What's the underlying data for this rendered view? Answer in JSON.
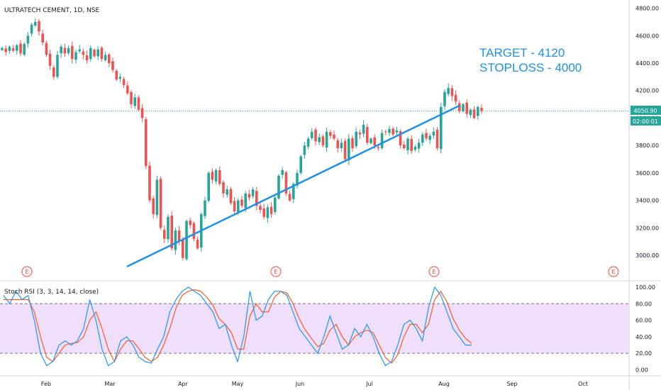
{
  "symbol_title": "ULTRATECH CEMENT, 1D, NSE",
  "annotations": {
    "target": "TARGET  - 4120",
    "stoploss": "STOPLOSS  - 4000"
  },
  "price_badge": {
    "value": "4050.90",
    "countdown": "02:00:01"
  },
  "earnings_marker": "E",
  "indicator_title": "Stoch RSI (3, 3, 14, 14, close)",
  "colors": {
    "up": "#26a69a",
    "down": "#ef5350",
    "trendline": "#1e90e6",
    "rsi_k": "#2196f3",
    "rsi_d": "#ff5722",
    "rsi_band": "#e9d3fb",
    "earnings": "#f44336"
  },
  "chart_data": [
    {
      "type": "candlestick",
      "title": "ULTRATECH CEMENT, 1D, NSE",
      "y_ticks": [
        3000,
        3200,
        3400,
        3600,
        3800,
        4000,
        4200,
        4400,
        4600,
        4800
      ],
      "y_tick_labels": [
        "3000.00",
        "3200.00",
        "3400.00",
        "3600.00",
        "3800.00",
        "4000.00",
        "4200.00",
        "4400.00",
        "4600.00",
        "4800.00"
      ],
      "ylim": [
        2880,
        4850
      ],
      "x_labels": [
        "Feb",
        "Mar",
        "Apr",
        "May",
        "Jun",
        "Jul",
        "Aug",
        "Sep",
        "Oct"
      ],
      "last_price": 4050.9,
      "grid": false,
      "series": [
        {
          "closes": [
            4510,
            4480,
            4520,
            4490,
            4530,
            4470,
            4540,
            4600,
            4680,
            4700,
            4630,
            4550,
            4460,
            4380,
            4300,
            4460,
            4520,
            4470,
            4510,
            4430,
            4480,
            4500,
            4460,
            4420,
            4510,
            4450,
            4500,
            4430,
            4460,
            4400,
            4350,
            4280,
            4300,
            4240,
            4180,
            4100,
            4150,
            4060,
            4000,
            3650,
            3400,
            3300,
            3550,
            3200,
            3120,
            3280,
            3050,
            3180,
            3100,
            2980,
            3250,
            3220,
            3120,
            3050,
            3300,
            3400,
            3600,
            3550,
            3620,
            3520,
            3450,
            3480,
            3380,
            3320,
            3400,
            3360,
            3450,
            3420,
            3480,
            3360,
            3330,
            3280,
            3350,
            3300,
            3420,
            3580,
            3620,
            3450,
            3400,
            3520,
            3600,
            3720,
            3800,
            3850,
            3900,
            3830,
            3860,
            3800,
            3900,
            3870,
            3850,
            3780,
            3820,
            3700,
            3850,
            3780,
            3900,
            3880,
            3950,
            3820,
            3850,
            3800,
            3780,
            3890,
            3900,
            3920,
            3880,
            3910,
            3800,
            3780,
            3850,
            3760,
            3790,
            3820,
            3880,
            3850,
            3870,
            3900,
            3780,
            4080,
            4190,
            4220,
            4160,
            4120,
            4050,
            4100,
            4030,
            4060,
            4000,
            4080,
            4050
          ]
        }
      ],
      "trendline": {
        "from": {
          "bar": 34,
          "price": 2920
        },
        "to": {
          "bar": 124,
          "price": 4090
        }
      },
      "earnings_marks": [
        "Feb",
        "May",
        "Aug",
        "Oct"
      ]
    },
    {
      "type": "line",
      "title": "Stoch RSI (3, 3, 14, 14, close)",
      "y_ticks": [
        0,
        20,
        40,
        60,
        80,
        100
      ],
      "y_tick_labels": [
        "0.00",
        "20.00",
        "40.00",
        "60.00",
        "80.00",
        "100.00"
      ],
      "ylim": [
        -5,
        105
      ],
      "band": [
        20,
        80
      ],
      "series": [
        {
          "name": "K",
          "values": [
            90,
            80,
            95,
            85,
            90,
            60,
            20,
            5,
            10,
            30,
            35,
            30,
            35,
            50,
            85,
            60,
            25,
            5,
            10,
            35,
            40,
            30,
            15,
            10,
            8,
            25,
            40,
            70,
            85,
            95,
            100,
            95,
            90,
            80,
            70,
            50,
            55,
            30,
            10,
            40,
            95,
            60,
            65,
            85,
            95,
            95,
            90,
            70,
            50,
            40,
            30,
            20,
            40,
            65,
            45,
            25,
            30,
            50,
            40,
            55,
            40,
            20,
            5,
            10,
            30,
            55,
            60,
            50,
            35,
            75,
            100,
            90,
            70,
            50,
            40,
            30,
            30
          ]
        },
        {
          "name": "D",
          "values": [
            85,
            85,
            85,
            85,
            85,
            70,
            40,
            15,
            10,
            20,
            30,
            32,
            33,
            40,
            60,
            70,
            50,
            25,
            10,
            25,
            35,
            35,
            25,
            15,
            10,
            15,
            30,
            50,
            75,
            90,
            95,
            97,
            95,
            88,
            78,
            62,
            55,
            45,
            25,
            25,
            65,
            80,
            70,
            70,
            88,
            95,
            93,
            80,
            62,
            48,
            38,
            28,
            32,
            48,
            55,
            40,
            30,
            40,
            45,
            48,
            45,
            30,
            15,
            8,
            18,
            40,
            55,
            55,
            45,
            55,
            85,
            95,
            82,
            62,
            48,
            38,
            32
          ]
        }
      ]
    }
  ]
}
